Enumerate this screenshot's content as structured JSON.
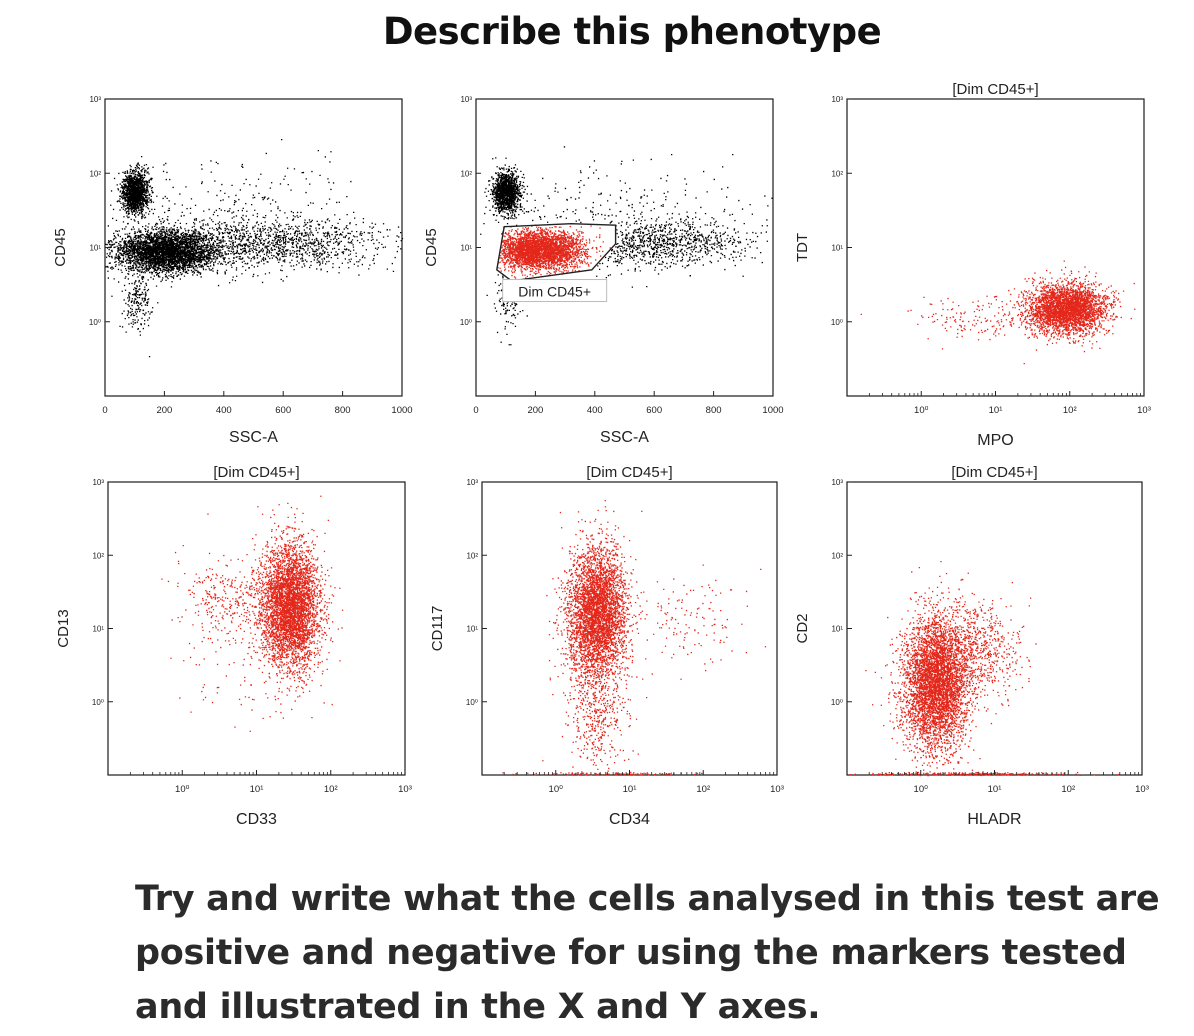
{
  "title": "Describe this phenotype",
  "caption": {
    "lines": [
      "Try and write what the cells analysed in this test are",
      "positive and negative for using the markers tested",
      "and illustrated in the X and Y axes."
    ]
  },
  "colors": {
    "gated": "#e3271b",
    "ungated": "#000000",
    "frame": "#1a1a1a"
  },
  "chart_data": [
    {
      "type": "scatter",
      "id": "p1",
      "title": "",
      "xlabel": "SSC-A",
      "ylabel": "CD45",
      "xscale": "linear",
      "xlim": [
        0,
        1000
      ],
      "ylim": [
        -1.0,
        3.0
      ],
      "xticks": [
        0,
        200,
        400,
        600,
        800,
        1000
      ],
      "xtick_labels": [
        "0",
        "200",
        "400",
        "600",
        "800",
        "1000"
      ],
      "yticks": [
        0,
        1,
        2,
        3
      ],
      "ytick_labels": [
        "10⁰",
        "10¹",
        "10²",
        "10³"
      ],
      "populations": [
        {
          "name": "CD45 bright cluster",
          "color": "#000000",
          "n": 1400,
          "cx": 100,
          "cy": 1.75,
          "sx": 22,
          "sy": 0.14
        },
        {
          "name": "CD45 dim band",
          "color": "#000000",
          "n": 3600,
          "cx": 200,
          "cy": 0.95,
          "sx": 85,
          "sy": 0.14
        },
        {
          "name": "CD45 dim tail",
          "color": "#000000",
          "n": 1200,
          "cx": 560,
          "cy": 1.05,
          "sx": 190,
          "sy": 0.16
        },
        {
          "name": "CD45 low events",
          "color": "#000000",
          "n": 200,
          "cx": 110,
          "cy": 0.3,
          "sx": 25,
          "sy": 0.2
        },
        {
          "name": "sparse background",
          "color": "#000000",
          "n": 350,
          "cx": 450,
          "cy": 1.4,
          "sx": 240,
          "sy": 0.35
        }
      ]
    },
    {
      "type": "scatter",
      "id": "p2",
      "title": "",
      "xlabel": "SSC-A",
      "ylabel": "CD45",
      "xscale": "linear",
      "xlim": [
        0,
        1000
      ],
      "ylim": [
        -1.0,
        3.0
      ],
      "xticks": [
        0,
        200,
        400,
        600,
        800,
        1000
      ],
      "xtick_labels": [
        "0",
        "200",
        "400",
        "600",
        "800",
        "1000"
      ],
      "yticks": [
        0,
        1,
        2,
        3
      ],
      "ytick_labels": [
        "10⁰",
        "10¹",
        "10²",
        "10³"
      ],
      "gate": {
        "label": "Dim CD45+",
        "polygon": [
          [
            70,
            0.7
          ],
          [
            95,
            1.28
          ],
          [
            320,
            1.32
          ],
          [
            470,
            1.3
          ],
          [
            470,
            1.05
          ],
          [
            390,
            0.7
          ],
          [
            120,
            0.55
          ]
        ]
      },
      "populations": [
        {
          "name": "CD45 bright cluster",
          "color": "#000000",
          "n": 1300,
          "cx": 100,
          "cy": 1.75,
          "sx": 22,
          "sy": 0.14
        },
        {
          "name": "Dim CD45+ gated",
          "color": "#e3271b",
          "n": 3400,
          "cx": 210,
          "cy": 0.97,
          "sx": 75,
          "sy": 0.13,
          "clip_gate": true
        },
        {
          "name": "CD45 dim tail",
          "color": "#000000",
          "n": 1000,
          "cx": 600,
          "cy": 1.07,
          "sx": 160,
          "sy": 0.16
        },
        {
          "name": "CD45 low events",
          "color": "#000000",
          "n": 150,
          "cx": 110,
          "cy": 0.35,
          "sx": 25,
          "sy": 0.2
        },
        {
          "name": "sparse background",
          "color": "#000000",
          "n": 300,
          "cx": 450,
          "cy": 1.4,
          "sx": 240,
          "sy": 0.35
        }
      ]
    },
    {
      "type": "scatter",
      "id": "p3",
      "title": "[Dim CD45+]",
      "xlabel": "MPO",
      "ylabel": "TDT",
      "xscale": "log",
      "xlim": [
        -1.0,
        3.0
      ],
      "ylim": [
        -1.0,
        3.0
      ],
      "xticks": [
        0,
        1,
        2,
        3
      ],
      "xtick_labels": [
        "10⁰",
        "10¹",
        "10²",
        "10³"
      ],
      "yticks": [
        0,
        1,
        2,
        3
      ],
      "ytick_labels": [
        "10⁰",
        "10¹",
        "10²",
        "10³"
      ],
      "populations": [
        {
          "name": "MPO+ TDT- cluster",
          "color": "#e3271b",
          "n": 3200,
          "cx": 1.95,
          "cy": 0.18,
          "sx": 0.26,
          "sy": 0.17
        },
        {
          "name": "MPO dim scatter",
          "color": "#e3271b",
          "n": 160,
          "cx": 0.8,
          "cy": 0.05,
          "sx": 0.45,
          "sy": 0.15
        }
      ]
    },
    {
      "type": "scatter",
      "id": "p4",
      "title": "[Dim CD45+]",
      "xlabel": "CD33",
      "ylabel": "CD13",
      "xscale": "log",
      "xlim": [
        -1.0,
        3.0
      ],
      "ylim": [
        -1.0,
        3.0
      ],
      "xticks": [
        0,
        1,
        2,
        3
      ],
      "xtick_labels": [
        "10⁰",
        "10¹",
        "10²",
        "10³"
      ],
      "yticks": [
        0,
        1,
        2,
        3
      ],
      "ytick_labels": [
        "10⁰",
        "10¹",
        "10²",
        "10³"
      ],
      "populations": [
        {
          "name": "CD13+ CD33+ cluster",
          "color": "#e3271b",
          "n": 4200,
          "cx": 1.45,
          "cy": 1.3,
          "sx": 0.2,
          "sy": 0.42
        },
        {
          "name": "CD33 low shoulder",
          "color": "#e3271b",
          "n": 250,
          "cx": 0.6,
          "cy": 1.45,
          "sx": 0.28,
          "sy": 0.25
        },
        {
          "name": "sparse events",
          "color": "#e3271b",
          "n": 200,
          "cx": 1.0,
          "cy": 0.9,
          "sx": 0.5,
          "sy": 0.6
        }
      ]
    },
    {
      "type": "scatter",
      "id": "p5",
      "title": "[Dim CD45+]",
      "xlabel": "CD34",
      "ylabel": "CD117",
      "xscale": "log",
      "xlim": [
        -1.0,
        3.0
      ],
      "ylim": [
        -1.0,
        3.0
      ],
      "xticks": [
        0,
        1,
        2,
        3
      ],
      "xtick_labels": [
        "10⁰",
        "10¹",
        "10²",
        "10³"
      ],
      "yticks": [
        0,
        1,
        2,
        3
      ],
      "ytick_labels": [
        "10⁰",
        "10¹",
        "10²",
        "10³"
      ],
      "populations": [
        {
          "name": "CD117+ CD34- cluster",
          "color": "#e3271b",
          "n": 4000,
          "cx": 0.55,
          "cy": 1.2,
          "sx": 0.2,
          "sy": 0.45
        },
        {
          "name": "CD117 low tail",
          "color": "#e3271b",
          "n": 400,
          "cx": 0.55,
          "cy": -0.2,
          "sx": 0.2,
          "sy": 0.35
        },
        {
          "name": "CD34 scattered events",
          "color": "#e3271b",
          "n": 130,
          "cx": 1.8,
          "cy": 1.1,
          "sx": 0.4,
          "sy": 0.35
        },
        {
          "name": "axis-on events",
          "color": "#e3271b",
          "n": 120,
          "cx": 0.7,
          "cy": -0.98,
          "sx": 0.55,
          "sy": 0.01
        }
      ]
    },
    {
      "type": "scatter",
      "id": "p6",
      "title": "[Dim CD45+]",
      "xlabel": "HLADR",
      "ylabel": "CD2",
      "xscale": "log",
      "xlim": [
        -1.0,
        3.0
      ],
      "ylim": [
        -1.0,
        3.0
      ],
      "xticks": [
        0,
        1,
        2,
        3
      ],
      "xtick_labels": [
        "10⁰",
        "10¹",
        "10²",
        "10³"
      ],
      "yticks": [
        0,
        1,
        2,
        3
      ],
      "ytick_labels": [
        "10⁰",
        "10¹",
        "10²",
        "10³"
      ],
      "populations": [
        {
          "name": "CD2- HLADR dim-/+ cluster",
          "color": "#e3271b",
          "n": 4500,
          "cx": 0.2,
          "cy": 0.25,
          "sx": 0.22,
          "sy": 0.45
        },
        {
          "name": "HLADR+ extension",
          "color": "#e3271b",
          "n": 700,
          "cx": 0.75,
          "cy": 0.7,
          "sx": 0.3,
          "sy": 0.35
        },
        {
          "name": "axis-on events",
          "color": "#e3271b",
          "n": 250,
          "cx": 0.6,
          "cy": -0.98,
          "sx": 0.7,
          "sy": 0.01
        }
      ]
    }
  ]
}
